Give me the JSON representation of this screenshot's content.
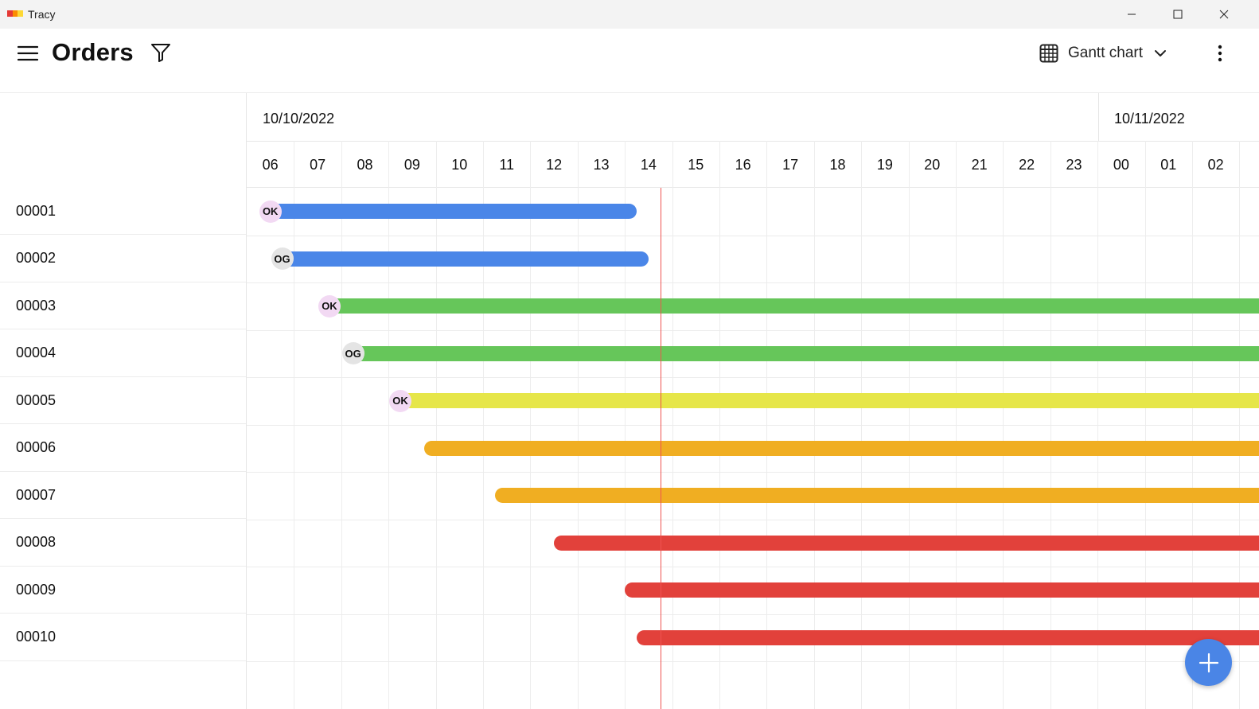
{
  "window": {
    "app_title": "Tracy",
    "logo_colors": [
      "#e53935",
      "#fb8c00",
      "#fdd835"
    ]
  },
  "header": {
    "title": "Orders",
    "menu_icon": "hamburger-icon",
    "filter_icon": "filter-icon",
    "view_selector": {
      "icon": "grid-calendar-icon",
      "label": "Gantt chart"
    },
    "more_icon": "more-vertical-icon"
  },
  "dates": [
    "10/10/2022",
    "10/11/2022"
  ],
  "hours": [
    "06",
    "07",
    "08",
    "09",
    "10",
    "11",
    "12",
    "13",
    "14",
    "15",
    "16",
    "17",
    "18",
    "19",
    "20",
    "21",
    "22",
    "23",
    "00",
    "01",
    "02"
  ],
  "orders": [
    {
      "id": "00001",
      "status": "OK",
      "color": "#4a86e8",
      "start_hour": 6.5,
      "end_hour": 14.25
    },
    {
      "id": "00002",
      "status": "OG",
      "color": "#4a86e8",
      "start_hour": 6.75,
      "end_hour": 14.5
    },
    {
      "id": "00003",
      "status": "OK",
      "color": "#66c65a",
      "start_hour": 7.75,
      "end_hour": null
    },
    {
      "id": "00004",
      "status": "OG",
      "color": "#66c65a",
      "start_hour": 8.25,
      "end_hour": null
    },
    {
      "id": "00005",
      "status": "OK",
      "color": "#e6e649",
      "start_hour": 9.25,
      "end_hour": null
    },
    {
      "id": "00006",
      "status": "",
      "color": "#f0ae22",
      "start_hour": 9.75,
      "end_hour": null
    },
    {
      "id": "00007",
      "status": "",
      "color": "#f0ae22",
      "start_hour": 11.25,
      "end_hour": null
    },
    {
      "id": "00008",
      "status": "",
      "color": "#e2413b",
      "start_hour": 12.5,
      "end_hour": null
    },
    {
      "id": "00009",
      "status": "",
      "color": "#e2413b",
      "start_hour": 14.0,
      "end_hour": null
    },
    {
      "id": "00010",
      "status": "",
      "color": "#e2413b",
      "start_hour": 14.25,
      "end_hour": null
    }
  ],
  "current_time_hour": 14.75,
  "fab_icon": "plus-icon",
  "colors": {
    "accent": "#4a85e6",
    "now_line": "#ef5350"
  }
}
